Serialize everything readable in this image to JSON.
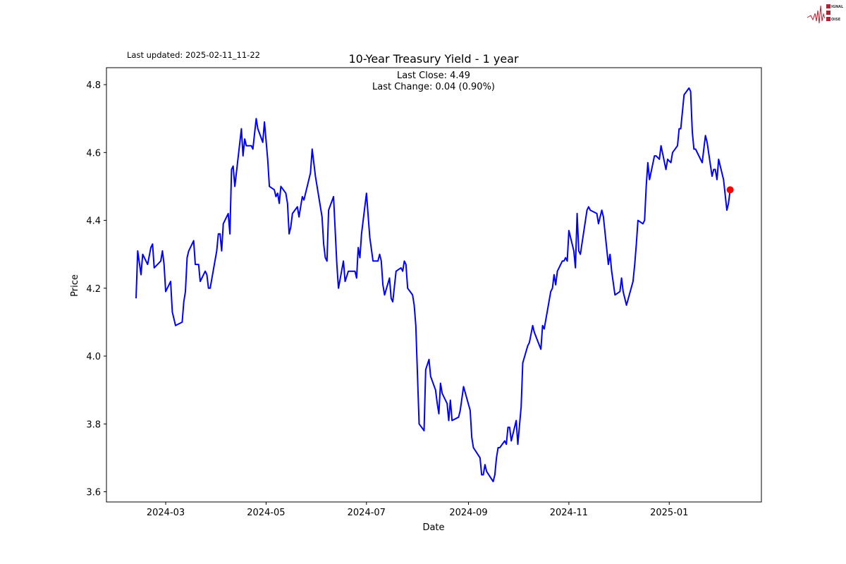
{
  "logo": {
    "text": [
      "SIGNAL",
      "2",
      "NOISE"
    ]
  },
  "header": {
    "last_updated": "Last updated: 2025-02-11_11-22"
  },
  "chart_data": {
    "type": "line",
    "title": "10-Year Treasury Yield - 1 year",
    "xlabel": "Date",
    "ylabel": "Price",
    "annotations": [
      "Last Close: 4.49",
      "Last Change: 0.04 (0.90%)"
    ],
    "grid": false,
    "line_color": "#0000ff",
    "marker_color": "#ff0000",
    "xlim": [
      "2024-01-25",
      "2025-02-26"
    ],
    "ylim": [
      3.57,
      4.85
    ],
    "x_ticks": [
      "2024-03",
      "2024-05",
      "2024-07",
      "2024-09",
      "2024-11",
      "2025-01"
    ],
    "y_ticks": [
      3.6,
      3.8,
      4.0,
      4.2,
      4.4,
      4.6,
      4.8
    ],
    "last_point": [
      "2025-02-07",
      4.49
    ],
    "points": [
      [
        "2024-02-12",
        4.17
      ],
      [
        "2024-02-13",
        4.31
      ],
      [
        "2024-02-15",
        4.24
      ],
      [
        "2024-02-16",
        4.3
      ],
      [
        "2024-02-19",
        4.27
      ],
      [
        "2024-02-21",
        4.32
      ],
      [
        "2024-02-22",
        4.33
      ],
      [
        "2024-02-23",
        4.26
      ],
      [
        "2024-02-27",
        4.28
      ],
      [
        "2024-02-28",
        4.31
      ],
      [
        "2024-02-29",
        4.27
      ],
      [
        "2024-03-01",
        4.19
      ],
      [
        "2024-03-04",
        4.22
      ],
      [
        "2024-03-05",
        4.13
      ],
      [
        "2024-03-07",
        4.09
      ],
      [
        "2024-03-11",
        4.1
      ],
      [
        "2024-03-12",
        4.16
      ],
      [
        "2024-03-13",
        4.19
      ],
      [
        "2024-03-14",
        4.29
      ],
      [
        "2024-03-15",
        4.31
      ],
      [
        "2024-03-18",
        4.34
      ],
      [
        "2024-03-19",
        4.27
      ],
      [
        "2024-03-21",
        4.27
      ],
      [
        "2024-03-22",
        4.22
      ],
      [
        "2024-03-25",
        4.25
      ],
      [
        "2024-03-26",
        4.24
      ],
      [
        "2024-03-27",
        4.2
      ],
      [
        "2024-03-28",
        4.2
      ],
      [
        "2024-04-01",
        4.31
      ],
      [
        "2024-04-02",
        4.36
      ],
      [
        "2024-04-03",
        4.36
      ],
      [
        "2024-04-04",
        4.31
      ],
      [
        "2024-04-05",
        4.39
      ],
      [
        "2024-04-08",
        4.42
      ],
      [
        "2024-04-09",
        4.36
      ],
      [
        "2024-04-10",
        4.55
      ],
      [
        "2024-04-11",
        4.56
      ],
      [
        "2024-04-12",
        4.5
      ],
      [
        "2024-04-16",
        4.67
      ],
      [
        "2024-04-17",
        4.59
      ],
      [
        "2024-04-18",
        4.64
      ],
      [
        "2024-04-19",
        4.62
      ],
      [
        "2024-04-22",
        4.62
      ],
      [
        "2024-04-23",
        4.61
      ],
      [
        "2024-04-25",
        4.7
      ],
      [
        "2024-04-26",
        4.67
      ],
      [
        "2024-04-29",
        4.63
      ],
      [
        "2024-04-30",
        4.69
      ],
      [
        "2024-05-02",
        4.58
      ],
      [
        "2024-05-03",
        4.5
      ],
      [
        "2024-05-06",
        4.49
      ],
      [
        "2024-05-07",
        4.47
      ],
      [
        "2024-05-08",
        4.48
      ],
      [
        "2024-05-09",
        4.45
      ],
      [
        "2024-05-10",
        4.5
      ],
      [
        "2024-05-13",
        4.48
      ],
      [
        "2024-05-14",
        4.45
      ],
      [
        "2024-05-15",
        4.36
      ],
      [
        "2024-05-16",
        4.38
      ],
      [
        "2024-05-17",
        4.42
      ],
      [
        "2024-05-20",
        4.44
      ],
      [
        "2024-05-21",
        4.41
      ],
      [
        "2024-05-23",
        4.47
      ],
      [
        "2024-05-24",
        4.46
      ],
      [
        "2024-05-28",
        4.54
      ],
      [
        "2024-05-29",
        4.61
      ],
      [
        "2024-05-31",
        4.53
      ],
      [
        "2024-06-04",
        4.41
      ],
      [
        "2024-06-05",
        4.33
      ],
      [
        "2024-06-06",
        4.29
      ],
      [
        "2024-06-07",
        4.28
      ],
      [
        "2024-06-08",
        4.43
      ],
      [
        "2024-06-11",
        4.47
      ],
      [
        "2024-06-13",
        4.27
      ],
      [
        "2024-06-14",
        4.2
      ],
      [
        "2024-06-17",
        4.28
      ],
      [
        "2024-06-18",
        4.22
      ],
      [
        "2024-06-20",
        4.25
      ],
      [
        "2024-06-24",
        4.25
      ],
      [
        "2024-06-25",
        4.23
      ],
      [
        "2024-06-26",
        4.32
      ],
      [
        "2024-06-27",
        4.29
      ],
      [
        "2024-06-28",
        4.36
      ],
      [
        "2024-07-01",
        4.48
      ],
      [
        "2024-07-03",
        4.35
      ],
      [
        "2024-07-05",
        4.28
      ],
      [
        "2024-07-08",
        4.28
      ],
      [
        "2024-07-09",
        4.3
      ],
      [
        "2024-07-10",
        4.28
      ],
      [
        "2024-07-11",
        4.21
      ],
      [
        "2024-07-12",
        4.18
      ],
      [
        "2024-07-15",
        4.23
      ],
      [
        "2024-07-16",
        4.17
      ],
      [
        "2024-07-17",
        4.16
      ],
      [
        "2024-07-19",
        4.25
      ],
      [
        "2024-07-22",
        4.26
      ],
      [
        "2024-07-23",
        4.25
      ],
      [
        "2024-07-24",
        4.28
      ],
      [
        "2024-07-25",
        4.27
      ],
      [
        "2024-07-26",
        4.2
      ],
      [
        "2024-07-29",
        4.18
      ],
      [
        "2024-07-30",
        4.15
      ],
      [
        "2024-07-31",
        4.09
      ],
      [
        "2024-08-02",
        3.8
      ],
      [
        "2024-08-05",
        3.78
      ],
      [
        "2024-08-06",
        3.96
      ],
      [
        "2024-08-08",
        3.99
      ],
      [
        "2024-08-09",
        3.94
      ],
      [
        "2024-08-12",
        3.9
      ],
      [
        "2024-08-13",
        3.86
      ],
      [
        "2024-08-14",
        3.83
      ],
      [
        "2024-08-15",
        3.92
      ],
      [
        "2024-08-16",
        3.89
      ],
      [
        "2024-08-19",
        3.86
      ],
      [
        "2024-08-20",
        3.81
      ],
      [
        "2024-08-21",
        3.87
      ],
      [
        "2024-08-22",
        3.81
      ],
      [
        "2024-08-26",
        3.82
      ],
      [
        "2024-08-27",
        3.84
      ],
      [
        "2024-08-29",
        3.91
      ],
      [
        "2024-09-02",
        3.84
      ],
      [
        "2024-09-03",
        3.76
      ],
      [
        "2024-09-04",
        3.73
      ],
      [
        "2024-09-08",
        3.7
      ],
      [
        "2024-09-09",
        3.65
      ],
      [
        "2024-09-10",
        3.65
      ],
      [
        "2024-09-11",
        3.68
      ],
      [
        "2024-09-12",
        3.66
      ],
      [
        "2024-09-16",
        3.63
      ],
      [
        "2024-09-17",
        3.65
      ],
      [
        "2024-09-18",
        3.7
      ],
      [
        "2024-09-19",
        3.73
      ],
      [
        "2024-09-20",
        3.73
      ],
      [
        "2024-09-23",
        3.75
      ],
      [
        "2024-09-24",
        3.74
      ],
      [
        "2024-09-25",
        3.79
      ],
      [
        "2024-09-26",
        3.79
      ],
      [
        "2024-09-27",
        3.75
      ],
      [
        "2024-09-30",
        3.81
      ],
      [
        "2024-10-01",
        3.74
      ],
      [
        "2024-10-03",
        3.85
      ],
      [
        "2024-10-04",
        3.98
      ],
      [
        "2024-10-07",
        4.03
      ],
      [
        "2024-10-08",
        4.04
      ],
      [
        "2024-10-10",
        4.09
      ],
      [
        "2024-10-11",
        4.07
      ],
      [
        "2024-10-15",
        4.02
      ],
      [
        "2024-10-16",
        4.09
      ],
      [
        "2024-10-17",
        4.08
      ],
      [
        "2024-10-21",
        4.19
      ],
      [
        "2024-10-22",
        4.2
      ],
      [
        "2024-10-23",
        4.24
      ],
      [
        "2024-10-24",
        4.21
      ],
      [
        "2024-10-25",
        4.25
      ],
      [
        "2024-10-28",
        4.28
      ],
      [
        "2024-10-29",
        4.28
      ],
      [
        "2024-10-30",
        4.29
      ],
      [
        "2024-10-31",
        4.28
      ],
      [
        "2024-11-01",
        4.37
      ],
      [
        "2024-11-04",
        4.31
      ],
      [
        "2024-11-05",
        4.26
      ],
      [
        "2024-11-06",
        4.42
      ],
      [
        "2024-11-07",
        4.31
      ],
      [
        "2024-11-08",
        4.3
      ],
      [
        "2024-11-12",
        4.43
      ],
      [
        "2024-11-13",
        4.44
      ],
      [
        "2024-11-14",
        4.43
      ],
      [
        "2024-11-18",
        4.42
      ],
      [
        "2024-11-19",
        4.39
      ],
      [
        "2024-11-21",
        4.43
      ],
      [
        "2024-11-22",
        4.41
      ],
      [
        "2024-11-25",
        4.27
      ],
      [
        "2024-11-26",
        4.3
      ],
      [
        "2024-11-27",
        4.25
      ],
      [
        "2024-11-29",
        4.18
      ],
      [
        "2024-12-02",
        4.19
      ],
      [
        "2024-12-03",
        4.23
      ],
      [
        "2024-12-04",
        4.19
      ],
      [
        "2024-12-06",
        4.15
      ],
      [
        "2024-12-10",
        4.22
      ],
      [
        "2024-12-11",
        4.27
      ],
      [
        "2024-12-12",
        4.33
      ],
      [
        "2024-12-13",
        4.4
      ],
      [
        "2024-12-16",
        4.39
      ],
      [
        "2024-12-17",
        4.4
      ],
      [
        "2024-12-18",
        4.5
      ],
      [
        "2024-12-19",
        4.57
      ],
      [
        "2024-12-20",
        4.52
      ],
      [
        "2024-12-23",
        4.59
      ],
      [
        "2024-12-24",
        4.59
      ],
      [
        "2024-12-26",
        4.58
      ],
      [
        "2024-12-27",
        4.62
      ],
      [
        "2024-12-30",
        4.55
      ],
      [
        "2024-12-31",
        4.58
      ],
      [
        "2025-01-02",
        4.57
      ],
      [
        "2025-01-03",
        4.6
      ],
      [
        "2025-01-06",
        4.62
      ],
      [
        "2025-01-07",
        4.67
      ],
      [
        "2025-01-08",
        4.67
      ],
      [
        "2025-01-10",
        4.77
      ],
      [
        "2025-01-13",
        4.79
      ],
      [
        "2025-01-14",
        4.78
      ],
      [
        "2025-01-15",
        4.66
      ],
      [
        "2025-01-16",
        4.61
      ],
      [
        "2025-01-17",
        4.61
      ],
      [
        "2025-01-21",
        4.57
      ],
      [
        "2025-01-23",
        4.65
      ],
      [
        "2025-01-24",
        4.63
      ],
      [
        "2025-01-27",
        4.53
      ],
      [
        "2025-01-28",
        4.55
      ],
      [
        "2025-01-29",
        4.55
      ],
      [
        "2025-01-30",
        4.52
      ],
      [
        "2025-01-31",
        4.58
      ],
      [
        "2025-02-03",
        4.52
      ],
      [
        "2025-02-05",
        4.43
      ],
      [
        "2025-02-06",
        4.45
      ],
      [
        "2025-02-07",
        4.49
      ]
    ]
  }
}
